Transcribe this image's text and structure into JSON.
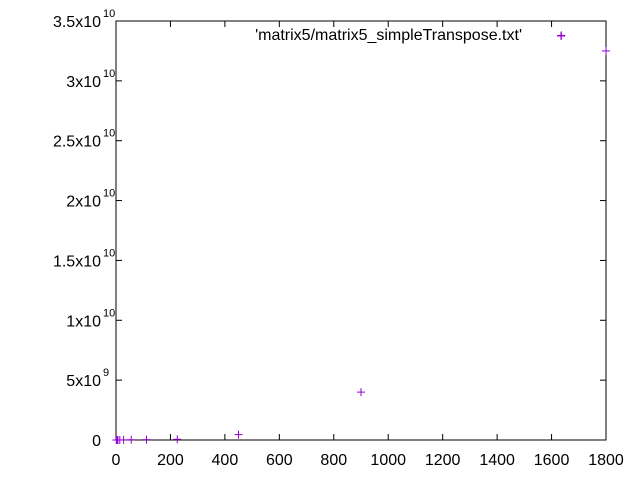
{
  "chart_data": {
    "type": "scatter",
    "title": "",
    "xlabel": "",
    "ylabel": "",
    "xlim": [
      0,
      1800
    ],
    "ylim": [
      0,
      35000000000
    ],
    "grid": false,
    "legend_position": "top-right",
    "x_ticks": [
      {
        "value": 0,
        "label": "0"
      },
      {
        "value": 200,
        "label": "200"
      },
      {
        "value": 400,
        "label": "400"
      },
      {
        "value": 600,
        "label": "600"
      },
      {
        "value": 800,
        "label": "800"
      },
      {
        "value": 1000,
        "label": "1000"
      },
      {
        "value": 1200,
        "label": "1200"
      },
      {
        "value": 1400,
        "label": "1400"
      },
      {
        "value": 1600,
        "label": "1600"
      },
      {
        "value": 1800,
        "label": "1800"
      }
    ],
    "y_ticks": [
      {
        "value": 0,
        "mantissa": "0",
        "exponent": ""
      },
      {
        "value": 5000000000,
        "mantissa": "5x10",
        "exponent": "9"
      },
      {
        "value": 10000000000,
        "mantissa": "1x10",
        "exponent": "10"
      },
      {
        "value": 15000000000,
        "mantissa": "1.5x10",
        "exponent": "10"
      },
      {
        "value": 20000000000,
        "mantissa": "2x10",
        "exponent": "10"
      },
      {
        "value": 25000000000,
        "mantissa": "2.5x10",
        "exponent": "10"
      },
      {
        "value": 30000000000,
        "mantissa": "3x10",
        "exponent": "10"
      },
      {
        "value": 35000000000,
        "mantissa": "3.5x10",
        "exponent": "10"
      }
    ],
    "series": [
      {
        "name": "'matrix5/matrix5_simpleTranspose.txt'",
        "color": "#9400d3",
        "marker": "plus",
        "points": [
          {
            "x": 1,
            "y": 0
          },
          {
            "x": 4,
            "y": 0
          },
          {
            "x": 7,
            "y": 0
          },
          {
            "x": 14,
            "y": 0
          },
          {
            "x": 28,
            "y": 10000000
          },
          {
            "x": 56,
            "y": 20000000
          },
          {
            "x": 112,
            "y": 30000000
          },
          {
            "x": 225,
            "y": 60000000
          },
          {
            "x": 450,
            "y": 450000000
          },
          {
            "x": 900,
            "y": 4000000000
          },
          {
            "x": 1636,
            "y": 33800000000
          },
          {
            "x": 1800,
            "y": 32500000000
          }
        ]
      }
    ]
  }
}
